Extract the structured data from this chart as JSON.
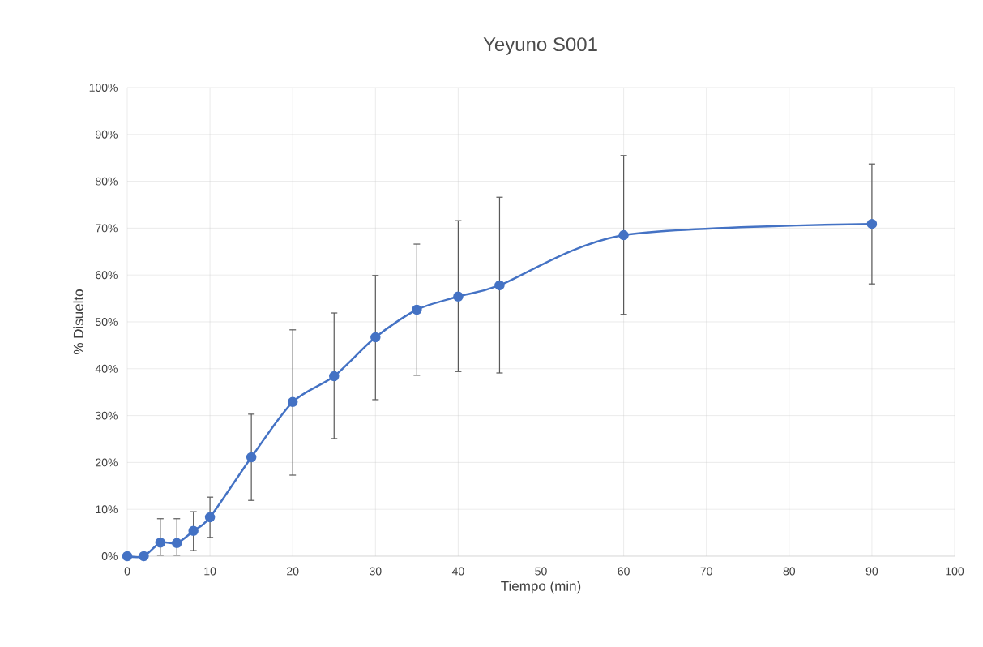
{
  "chart_data": {
    "type": "line",
    "title": "Yeyuno S001",
    "xlabel": "Tiempo (min)",
    "ylabel": "% Disuelto",
    "x": [
      0,
      2,
      4,
      6,
      8,
      10,
      15,
      20,
      25,
      30,
      35,
      40,
      45,
      60,
      90
    ],
    "series": [
      {
        "color": "#4472c4",
        "values": [
          0,
          0,
          2.9,
          2.8,
          5.4,
          8.3,
          21.1,
          32.9,
          38.4,
          46.7,
          52.6,
          55.4,
          57.8,
          68.5,
          70.9
        ],
        "errors": [
          null,
          null,
          [
            0.2,
            8.0
          ],
          [
            0.2,
            8.0
          ],
          [
            1.2,
            9.5
          ],
          [
            4.0,
            12.6
          ],
          [
            11.9,
            30.3
          ],
          [
            17.3,
            48.3
          ],
          [
            25.1,
            51.9
          ],
          [
            33.4,
            59.9
          ],
          [
            38.6,
            66.6
          ],
          [
            39.4,
            71.6
          ],
          [
            39.1,
            76.6
          ],
          [
            51.6,
            85.5
          ],
          [
            58.1,
            83.7
          ]
        ]
      }
    ],
    "xlim": [
      0,
      100
    ],
    "xticks": [
      0,
      10,
      20,
      30,
      40,
      50,
      60,
      70,
      80,
      90,
      100
    ],
    "ylim": [
      0,
      100
    ],
    "yticks": [
      {
        "value": 0,
        "label": "0%"
      },
      {
        "value": 10,
        "label": "10%"
      },
      {
        "value": 20,
        "label": "20%"
      },
      {
        "value": 30,
        "label": "30%"
      },
      {
        "value": 40,
        "label": "40%"
      },
      {
        "value": 50,
        "label": "50%"
      },
      {
        "value": 60,
        "label": "60%"
      },
      {
        "value": 70,
        "label": "70%"
      },
      {
        "value": 80,
        "label": "80%"
      },
      {
        "value": 90,
        "label": "90%"
      },
      {
        "value": 100,
        "label": "100%"
      }
    ],
    "grid": true,
    "marker": "circle",
    "line_style": "solid"
  }
}
